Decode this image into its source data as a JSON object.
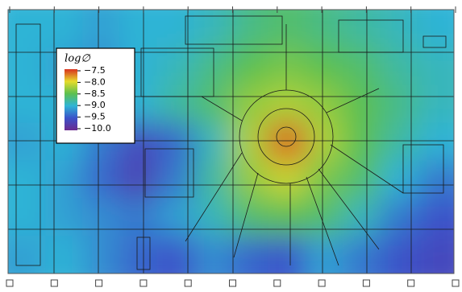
{
  "chart_data": {
    "type": "heatmap",
    "colorbar_title": "log∅",
    "clim": [
      -10,
      -7.5
    ],
    "colorscale": [
      "#6b2b8f",
      "#3b52c9",
      "#2fb4d6",
      "#5cc04f",
      "#e6dc2c",
      "#d8321f"
    ],
    "cticks": [
      {
        "value": -7.5,
        "label": "−7.5"
      },
      {
        "value": -8,
        "label": "−8.0"
      },
      {
        "value": -8.5,
        "label": "−8.5"
      },
      {
        "value": -9,
        "label": "−9.0"
      },
      {
        "value": -9.5,
        "label": "−9.5"
      },
      {
        "value": -10,
        "label": "−10.0"
      }
    ],
    "z": [
      [
        -9.0,
        -9.0,
        -9.1,
        -9.0,
        -9.0,
        -8.9,
        -8.7,
        -8.6,
        -8.7,
        -8.8,
        -8.9,
        -9.0
      ],
      [
        -9.0,
        -9.1,
        -9.2,
        -9.0,
        -8.9,
        -8.7,
        -8.5,
        -8.4,
        -8.5,
        -8.6,
        -8.8,
        -8.9
      ],
      [
        -9.0,
        -9.0,
        -9.1,
        -9.0,
        -8.8,
        -8.6,
        -8.3,
        -8.2,
        -8.3,
        -8.5,
        -8.7,
        -8.9
      ],
      [
        -9.1,
        -9.0,
        -9.3,
        -9.6,
        -9.4,
        -8.9,
        -8.2,
        -7.6,
        -8.2,
        -8.5,
        -8.8,
        -9.0
      ],
      [
        -9.0,
        -9.1,
        -9.4,
        -9.7,
        -9.3,
        -8.8,
        -8.3,
        -8.1,
        -8.4,
        -8.6,
        -9.0,
        -9.3
      ],
      [
        -9.0,
        -9.1,
        -9.2,
        -9.3,
        -9.1,
        -8.9,
        -8.6,
        -8.5,
        -8.6,
        -8.9,
        -9.3,
        -9.5
      ],
      [
        -9.1,
        -9.0,
        -9.2,
        -9.4,
        -9.5,
        -9.2,
        -9.4,
        -9.5,
        -9.1,
        -9.3,
        -9.5,
        -9.6
      ]
    ]
  }
}
